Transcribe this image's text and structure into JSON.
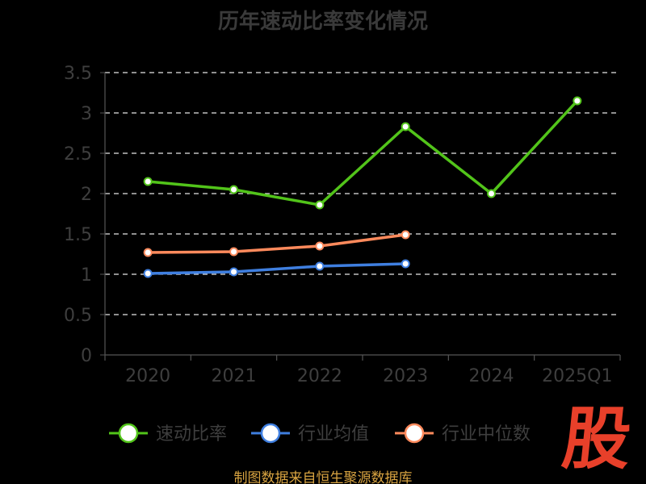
{
  "title": "历年速动比率变化情况",
  "source": "制图数据来自恒生聚源数据库",
  "logo_text": "股",
  "colors": {
    "background": "#000000",
    "axis": "#555555",
    "grid": "#e6e6e6",
    "tick_text": "#3e3e3e",
    "title": "#3a3a3a",
    "source": "#d9a441",
    "logo": "#e8402a"
  },
  "chart_data": {
    "type": "line",
    "title": "历年速动比率变化情况",
    "categories": [
      "2020",
      "2021",
      "2022",
      "2023",
      "2024",
      "2025Q1"
    ],
    "ylim": [
      0,
      3.5
    ],
    "yticks": [
      "0",
      "0.5",
      "1",
      "1.5",
      "2",
      "2.5",
      "3",
      "3.5"
    ],
    "grid": true,
    "legend_position": "bottom",
    "series": [
      {
        "name": "速动比率",
        "color": "#52c41a",
        "values": [
          2.15,
          2.05,
          1.86,
          2.83,
          2.0,
          3.15
        ]
      },
      {
        "name": "行业均值",
        "color": "#3f7fe0",
        "values": [
          1.01,
          1.03,
          1.1,
          1.13,
          null,
          null
        ]
      },
      {
        "name": "行业中位数",
        "color": "#ff8a5c",
        "values": [
          1.27,
          1.28,
          1.35,
          1.49,
          null,
          null
        ]
      }
    ]
  }
}
